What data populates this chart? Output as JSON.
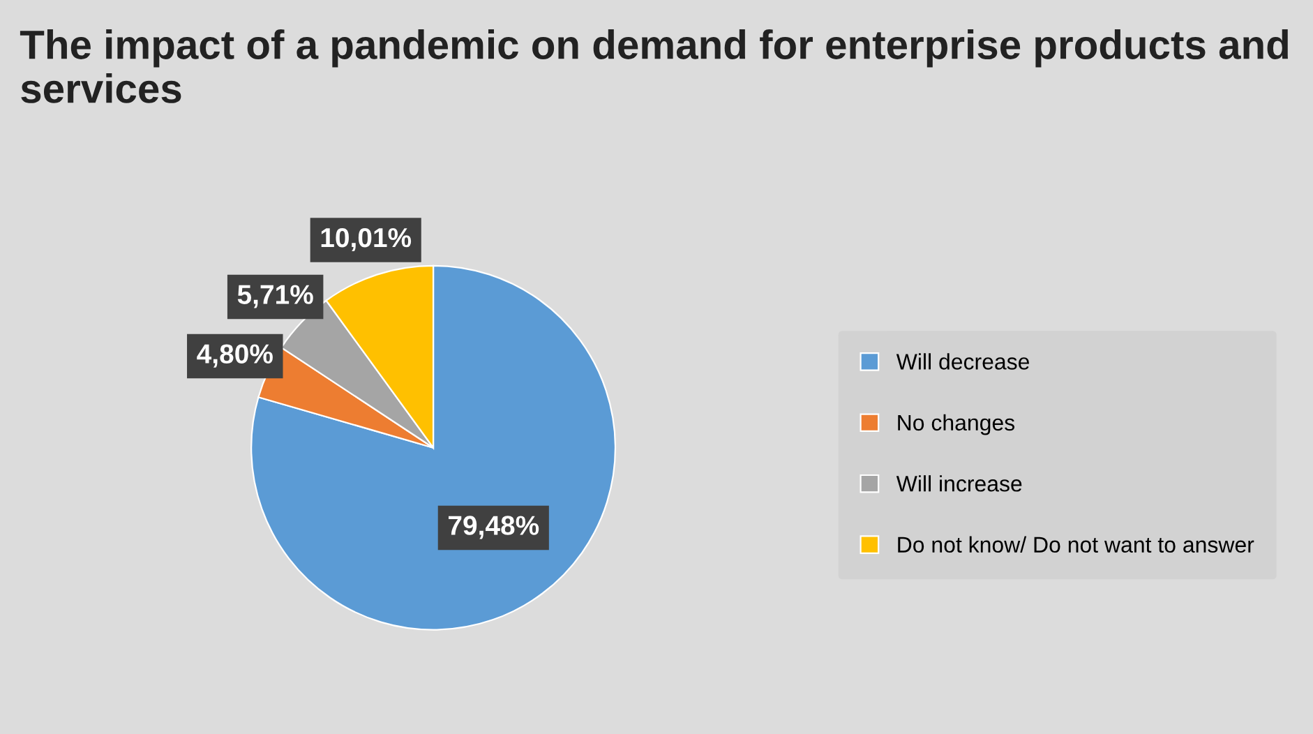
{
  "chart_data": {
    "type": "pie",
    "title": "The impact of a pandemic on demand for enterprise products and services",
    "categories": [
      "Will decrease",
      "No changes",
      "Will increase",
      "Do not know/ Do not want to answer"
    ],
    "values": [
      79.48,
      4.8,
      5.71,
      10.01
    ],
    "value_labels": [
      "79,48%",
      "4,80%",
      "5,71%",
      "10,01%"
    ],
    "colors": [
      "#5b9bd5",
      "#ed7d31",
      "#a5a5a5",
      "#ffc000"
    ],
    "legend": "right"
  }
}
